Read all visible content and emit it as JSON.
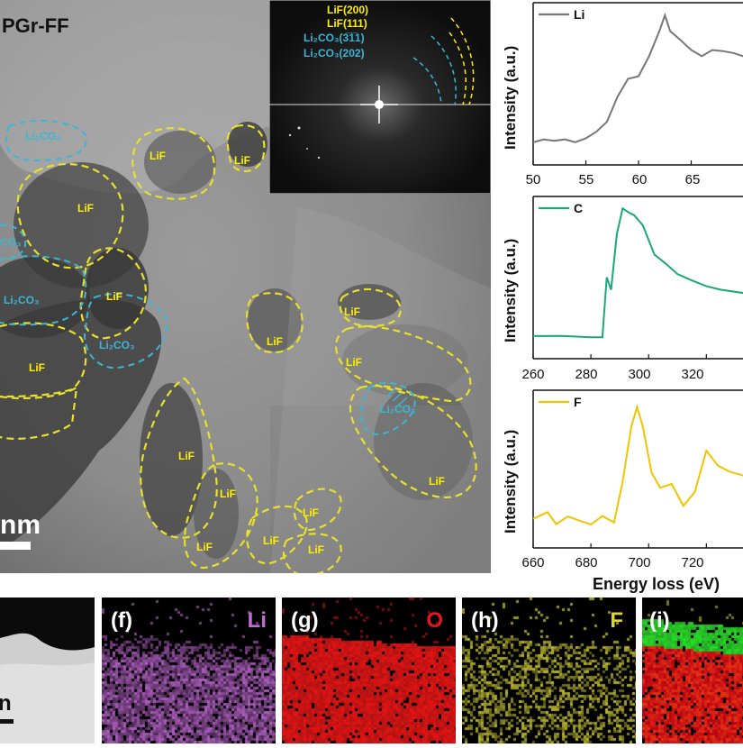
{
  "tem": {
    "title": "PGr-FF",
    "scale_text": "nm",
    "labels": [
      {
        "text": "Li₂CO₃",
        "color": "#3bb6d6"
      },
      {
        "text": "LiF",
        "color": "#ffee00"
      },
      {
        "text": "LiF",
        "color": "#ffee00"
      },
      {
        "text": "LiF",
        "color": "#ffee00"
      },
      {
        "text": "CO₃",
        "color": "#3bb6d6"
      },
      {
        "text": "Li₂CO₃",
        "color": "#3bb6d6"
      },
      {
        "text": "LiF",
        "color": "#ffee00"
      },
      {
        "text": "Li₂CO₃",
        "color": "#3bb6d6"
      },
      {
        "text": "LiF",
        "color": "#ffee00"
      },
      {
        "text": "LiF",
        "color": "#ffee00"
      },
      {
        "text": "LiF",
        "color": "#ffee00"
      },
      {
        "text": "LiF",
        "color": "#ffee00"
      },
      {
        "text": "Li₂CO₃",
        "color": "#3bb6d6"
      },
      {
        "text": "LiF",
        "color": "#ffee00"
      },
      {
        "text": "LiF",
        "color": "#ffee00"
      },
      {
        "text": "LiF",
        "color": "#ffee00"
      },
      {
        "text": "LiF",
        "color": "#ffee00"
      },
      {
        "text": "LiF",
        "color": "#ffee00"
      },
      {
        "text": "LiF",
        "color": "#ffee00"
      }
    ]
  },
  "fft": {
    "rings": [
      {
        "label": "LiF(200)",
        "color": "#ffee00"
      },
      {
        "label": "LiF(111)",
        "color": "#ffee00"
      },
      {
        "label": "Li₂CO₃(3̅1̅1)",
        "color": "#3bb6d6"
      },
      {
        "label": "Li₂CO₃(202)",
        "color": "#3bb6d6"
      }
    ]
  },
  "chart_data": [
    {
      "type": "line",
      "legend": "Li",
      "color": "#777777",
      "ylabel": "Intensity (a.u.)",
      "xlim": [
        50,
        70
      ],
      "x_ticks": [
        50,
        55,
        60,
        65
      ],
      "x": [
        50,
        51,
        52,
        53,
        54,
        55,
        56,
        57,
        58,
        59,
        60,
        61,
        62,
        62.5,
        63,
        64,
        65,
        66,
        67,
        68,
        69,
        70
      ],
      "y": [
        0.06,
        0.07,
        0.06,
        0.08,
        0.07,
        0.1,
        0.14,
        0.2,
        0.38,
        0.52,
        0.55,
        0.7,
        0.88,
        0.98,
        0.86,
        0.8,
        0.74,
        0.7,
        0.74,
        0.72,
        0.7,
        0.68
      ]
    },
    {
      "type": "line",
      "legend": "C",
      "color": "#1aa77a",
      "ylabel": "Intensity (a.u.)",
      "xlim": [
        260,
        333
      ],
      "x_ticks": [
        260,
        280,
        300,
        320
      ],
      "x": [
        260,
        270,
        280,
        284,
        285.5,
        287,
        289,
        291,
        293,
        295,
        298,
        302,
        306,
        310,
        315,
        320,
        325,
        333
      ],
      "y": [
        0.05,
        0.05,
        0.05,
        0.06,
        0.5,
        0.4,
        0.8,
        0.98,
        0.96,
        0.95,
        0.88,
        0.66,
        0.58,
        0.5,
        0.46,
        0.43,
        0.41,
        0.38
      ]
    },
    {
      "type": "line",
      "legend": "F",
      "color": "#f2c400",
      "ylabel": "Intensity (a.u.)",
      "xlabel": "Energy loss (eV)",
      "xlim": [
        660,
        733
      ],
      "x_ticks": [
        660,
        680,
        700,
        720
      ],
      "x": [
        660,
        665,
        668,
        672,
        676,
        680,
        684,
        688,
        691,
        694,
        696,
        698,
        701,
        704,
        708,
        712,
        716,
        720,
        724,
        728,
        733
      ],
      "y": [
        0.1,
        0.16,
        0.08,
        0.14,
        0.1,
        0.06,
        0.12,
        0.08,
        0.4,
        0.82,
        0.96,
        0.8,
        0.45,
        0.34,
        0.38,
        0.22,
        0.32,
        0.62,
        0.5,
        0.46,
        0.44
      ]
    }
  ],
  "eds": [
    {
      "label": "",
      "color": "#ffffff"
    },
    {
      "label": "(f)",
      "element": "Li",
      "color": "#c46ad8"
    },
    {
      "label": "(g)",
      "element": "O",
      "color": "#e01a1a"
    },
    {
      "label": "(h)",
      "element": "F",
      "color": "#d8d43a"
    },
    {
      "label": "(i)",
      "element": "",
      "color": "#ffffff"
    }
  ],
  "eds_scale_text": "n"
}
